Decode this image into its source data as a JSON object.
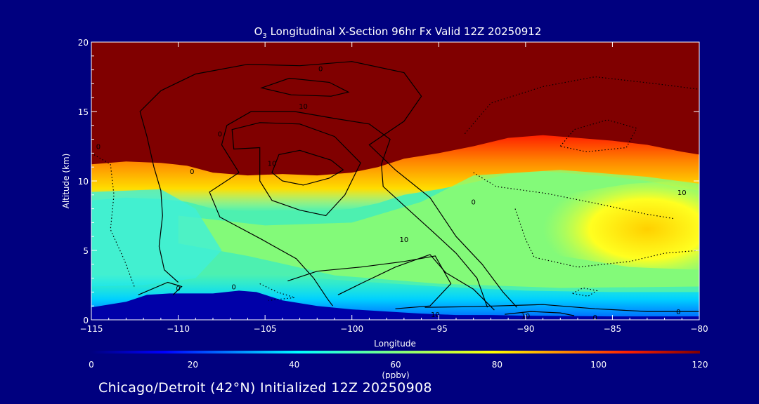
{
  "chart_data": {
    "type": "heatmap",
    "title_species": "O",
    "title_subscript": "3",
    "title_rest": " Longitudinal X-Section 96hr  Fx Valid 12Z 20250912",
    "xlabel": "Longitude",
    "ylabel": "Altitude (km)",
    "xlim": [
      -115,
      -80
    ],
    "ylim": [
      0,
      20
    ],
    "x_ticks": [
      -115,
      -110,
      -105,
      -100,
      -95,
      -90,
      -85,
      -80
    ],
    "x_tick_labels": [
      "−115",
      "−110",
      "−105",
      "−100",
      "−95",
      "−90",
      "−85",
      "−80"
    ],
    "y_ticks": [
      0,
      5,
      10,
      15,
      20
    ],
    "y_tick_labels": [
      "0",
      "5",
      "10",
      "15",
      "20"
    ],
    "colorbar": {
      "label": "(ppbv)",
      "range": [
        0,
        120
      ],
      "ticks": [
        0,
        20,
        40,
        60,
        80,
        100,
        120
      ],
      "tick_labels": [
        "0",
        "20",
        "40",
        "60",
        "80",
        "100",
        "120"
      ]
    },
    "field_samples": {
      "description_units": "ozone ppbv by longitude/altitude",
      "longitudes": [
        -115,
        -110,
        -105,
        -100,
        -95,
        -90,
        -85,
        -80
      ],
      "tropopause_km": [
        10.0,
        10.2,
        9.3,
        9.5,
        10.8,
        12.2,
        12.0,
        11.0
      ],
      "surface_km": [
        1.8,
        2.0,
        2.2,
        1.3,
        0.6,
        0.4,
        0.3,
        0.3
      ],
      "mid_trop_ppbv": [
        50,
        55,
        56,
        60,
        62,
        66,
        70,
        78
      ],
      "upper_trop_ppbv": [
        55,
        52,
        55,
        60,
        62,
        64,
        66,
        82
      ],
      "stratosphere_ppbv": 120
    },
    "contour_labels": [
      {
        "text": "0",
        "lon": -101.8,
        "alt": 18.1
      },
      {
        "text": "10",
        "lon": -102.8,
        "alt": 15.4
      },
      {
        "text": "10",
        "lon": -104.6,
        "alt": 11.3
      },
      {
        "text": "0",
        "lon": -107.6,
        "alt": 13.4
      },
      {
        "text": "0",
        "lon": -109.2,
        "alt": 10.7
      },
      {
        "text": "0",
        "lon": -114.6,
        "alt": 12.5
      },
      {
        "text": "10",
        "lon": -97.0,
        "alt": 5.8
      },
      {
        "text": "0",
        "lon": -93.0,
        "alt": 8.5
      },
      {
        "text": "10",
        "lon": -81.0,
        "alt": 9.2
      },
      {
        "text": "0",
        "lon": -110.0,
        "alt": 2.3
      },
      {
        "text": "0",
        "lon": -106.8,
        "alt": 2.4
      },
      {
        "text": "10",
        "lon": -95.2,
        "alt": 0.4
      },
      {
        "text": "10",
        "lon": -90.0,
        "alt": 0.3
      },
      {
        "text": "0",
        "lon": -86.0,
        "alt": 0.2
      },
      {
        "text": "0",
        "lon": -81.2,
        "alt": 0.6
      }
    ]
  },
  "footer": {
    "text": "Chicago/Detroit (42°N) Initialized 12Z 20250908"
  }
}
